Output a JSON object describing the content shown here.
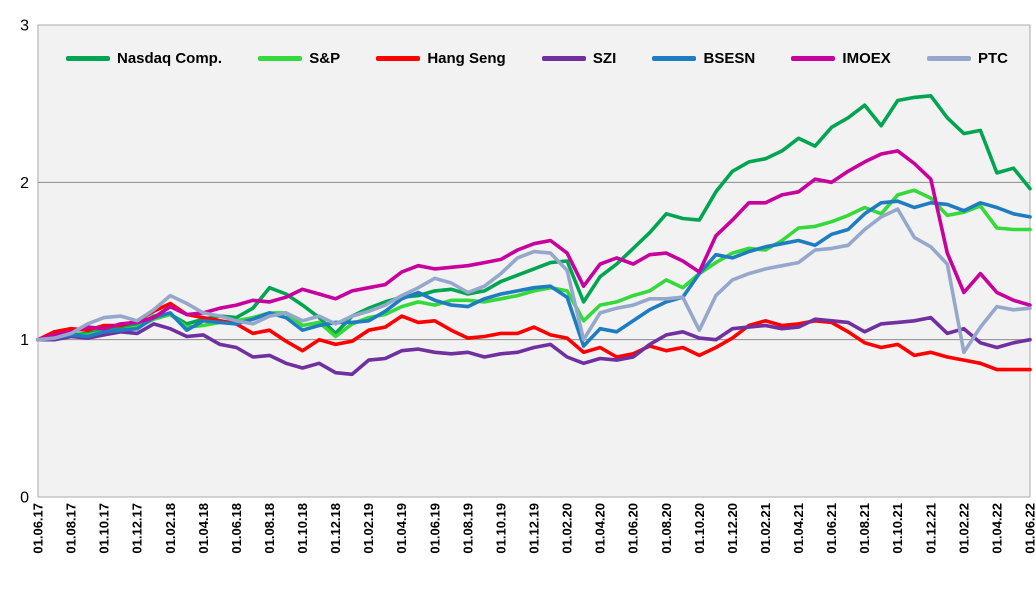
{
  "chart_data": {
    "type": "line",
    "title": "",
    "xlabel": "",
    "ylabel": "",
    "ylim": [
      0,
      3
    ],
    "y_ticks": [
      0,
      1,
      2,
      3
    ],
    "grid": "horizontal gridlines at y=1 and y=2",
    "legend_position": "top inside plot",
    "plot_bg": "#F2F2F2",
    "grid_color": "#8C8C8C",
    "border_color": "#ABABAB",
    "x_tick_labels": [
      "01.06.17",
      "01.08.17",
      "01.10.17",
      "01.12.17",
      "01.02.18",
      "01.04.18",
      "01.06.18",
      "01.08.18",
      "01.10.18",
      "01.12.18",
      "01.02.19",
      "01.04.19",
      "01.06.19",
      "01.08.19",
      "01.10.19",
      "01.12.19",
      "01.02.20",
      "01.04.20",
      "01.06.20",
      "01.08.20",
      "01.10.20",
      "01.12.20",
      "01.02.21",
      "01.04.21",
      "01.06.21",
      "01.08.21",
      "01.10.21",
      "01.12.21",
      "01.02.22",
      "01.04.22",
      "01.06.22"
    ],
    "x_note": "monthly data points from 01.06.17 to 01.06.22 (61 points), tick labels every 2nd month, indices normalized to 1.0 at 01.06.17",
    "series": [
      {
        "name": "Nasdaq Comp.",
        "color": "#00A551",
        "values": [
          1.0,
          1.02,
          1.03,
          1.04,
          1.06,
          1.08,
          1.09,
          1.15,
          1.16,
          1.1,
          1.13,
          1.15,
          1.14,
          1.2,
          1.33,
          1.29,
          1.22,
          1.14,
          1.04,
          1.15,
          1.2,
          1.24,
          1.27,
          1.28,
          1.31,
          1.32,
          1.29,
          1.31,
          1.37,
          1.41,
          1.45,
          1.49,
          1.5,
          1.24,
          1.4,
          1.48,
          1.58,
          1.68,
          1.8,
          1.77,
          1.76,
          1.94,
          2.07,
          2.13,
          2.15,
          2.2,
          2.28,
          2.23,
          2.35,
          2.41,
          2.49,
          2.36,
          2.52,
          2.54,
          2.55,
          2.41,
          2.31,
          2.33,
          2.06,
          2.09,
          1.96
        ]
      },
      {
        "name": "S&P",
        "color": "#35D93A",
        "values": [
          1.0,
          1.01,
          1.02,
          1.03,
          1.05,
          1.06,
          1.08,
          1.13,
          1.16,
          1.08,
          1.09,
          1.11,
          1.12,
          1.14,
          1.17,
          1.17,
          1.09,
          1.11,
          1.02,
          1.1,
          1.14,
          1.16,
          1.21,
          1.24,
          1.22,
          1.25,
          1.25,
          1.24,
          1.26,
          1.28,
          1.31,
          1.33,
          1.31,
          1.12,
          1.22,
          1.24,
          1.28,
          1.31,
          1.38,
          1.33,
          1.42,
          1.49,
          1.55,
          1.58,
          1.57,
          1.63,
          1.71,
          1.72,
          1.75,
          1.79,
          1.84,
          1.8,
          1.92,
          1.95,
          1.9,
          1.79,
          1.81,
          1.85,
          1.71,
          1.7,
          1.7
        ]
      },
      {
        "name": "Hang Seng",
        "color": "#FF0000",
        "values": [
          1.0,
          1.05,
          1.07,
          1.06,
          1.09,
          1.09,
          1.12,
          1.18,
          1.23,
          1.16,
          1.14,
          1.12,
          1.1,
          1.04,
          1.06,
          0.99,
          0.93,
          1.0,
          0.97,
          0.99,
          1.06,
          1.08,
          1.15,
          1.11,
          1.12,
          1.06,
          1.01,
          1.02,
          1.04,
          1.04,
          1.08,
          1.03,
          1.01,
          0.92,
          0.95,
          0.89,
          0.91,
          0.96,
          0.93,
          0.95,
          0.9,
          0.95,
          1.01,
          1.09,
          1.12,
          1.09,
          1.1,
          1.12,
          1.11,
          1.05,
          0.98,
          0.95,
          0.97,
          0.9,
          0.92,
          0.89,
          0.87,
          0.85,
          0.81,
          0.81,
          0.81
        ]
      },
      {
        "name": "SZI",
        "color": "#7030A0",
        "values": [
          1.0,
          1.0,
          1.02,
          1.01,
          1.03,
          1.05,
          1.04,
          1.1,
          1.07,
          1.02,
          1.03,
          0.97,
          0.95,
          0.89,
          0.9,
          0.85,
          0.82,
          0.85,
          0.79,
          0.78,
          0.87,
          0.88,
          0.93,
          0.94,
          0.92,
          0.91,
          0.92,
          0.89,
          0.91,
          0.92,
          0.95,
          0.97,
          0.89,
          0.85,
          0.88,
          0.87,
          0.89,
          0.97,
          1.03,
          1.05,
          1.01,
          1.0,
          1.07,
          1.08,
          1.09,
          1.07,
          1.08,
          1.13,
          1.12,
          1.11,
          1.05,
          1.1,
          1.11,
          1.12,
          1.14,
          1.04,
          1.07,
          0.98,
          0.95,
          0.98,
          1.0
        ]
      },
      {
        "name": "BSESN",
        "color": "#1E7CC1",
        "values": [
          1.0,
          1.01,
          1.03,
          1.02,
          1.05,
          1.06,
          1.07,
          1.14,
          1.17,
          1.06,
          1.12,
          1.11,
          1.1,
          1.13,
          1.17,
          1.14,
          1.06,
          1.09,
          1.11,
          1.11,
          1.12,
          1.18,
          1.26,
          1.3,
          1.25,
          1.22,
          1.21,
          1.26,
          1.29,
          1.31,
          1.33,
          1.34,
          1.27,
          0.96,
          1.07,
          1.05,
          1.12,
          1.19,
          1.24,
          1.27,
          1.42,
          1.54,
          1.52,
          1.56,
          1.59,
          1.61,
          1.63,
          1.6,
          1.67,
          1.7,
          1.8,
          1.87,
          1.88,
          1.84,
          1.87,
          1.86,
          1.82,
          1.87,
          1.84,
          1.8,
          1.78
        ]
      },
      {
        "name": "IMOEX",
        "color": "#C7009E",
        "values": [
          1.0,
          1.03,
          1.05,
          1.08,
          1.07,
          1.1,
          1.11,
          1.14,
          1.21,
          1.16,
          1.17,
          1.2,
          1.22,
          1.25,
          1.24,
          1.27,
          1.32,
          1.29,
          1.26,
          1.31,
          1.33,
          1.35,
          1.43,
          1.47,
          1.45,
          1.46,
          1.47,
          1.49,
          1.51,
          1.57,
          1.61,
          1.63,
          1.55,
          1.34,
          1.48,
          1.52,
          1.48,
          1.54,
          1.55,
          1.5,
          1.43,
          1.66,
          1.76,
          1.87,
          1.87,
          1.92,
          1.94,
          2.02,
          2.0,
          2.07,
          2.13,
          2.18,
          2.2,
          2.12,
          2.02,
          1.55,
          1.3,
          1.42,
          1.3,
          1.25,
          1.22
        ]
      },
      {
        "name": "PTC",
        "color": "#95A8CC",
        "values": [
          1.0,
          1.01,
          1.04,
          1.1,
          1.14,
          1.15,
          1.12,
          1.19,
          1.28,
          1.23,
          1.17,
          1.15,
          1.12,
          1.1,
          1.15,
          1.17,
          1.12,
          1.15,
          1.1,
          1.15,
          1.18,
          1.22,
          1.28,
          1.33,
          1.39,
          1.36,
          1.3,
          1.34,
          1.42,
          1.52,
          1.56,
          1.55,
          1.44,
          1.0,
          1.17,
          1.2,
          1.22,
          1.26,
          1.26,
          1.27,
          1.06,
          1.28,
          1.38,
          1.42,
          1.45,
          1.47,
          1.49,
          1.57,
          1.58,
          1.6,
          1.7,
          1.78,
          1.83,
          1.65,
          1.59,
          1.48,
          0.92,
          1.08,
          1.21,
          1.19,
          1.2
        ]
      }
    ]
  }
}
